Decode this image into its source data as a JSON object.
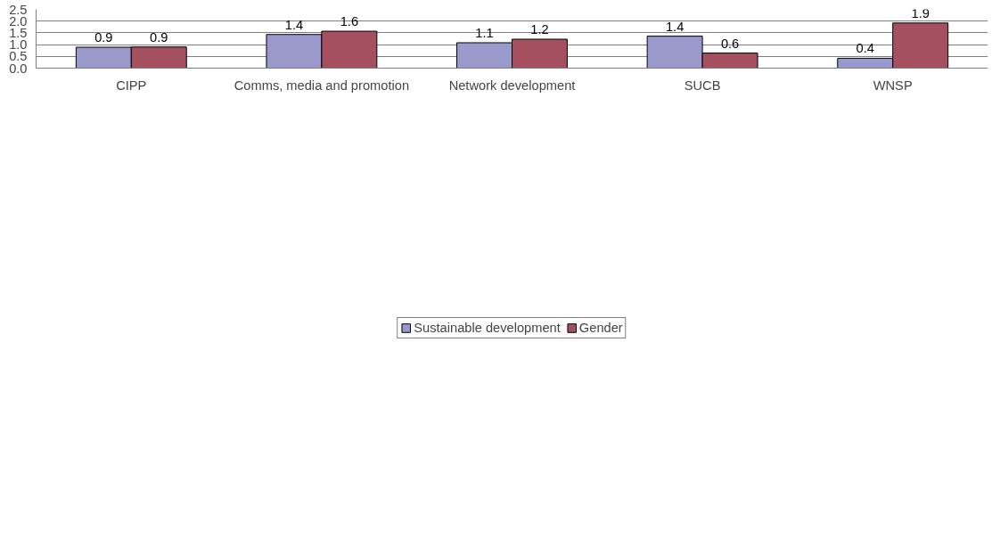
{
  "chart_data": {
    "type": "bar",
    "categories": [
      "CIPP",
      "Comms, media and promotion",
      "Network development",
      "SUCB",
      "WNSP"
    ],
    "series": [
      {
        "name": "Sustainable development",
        "color": "#9999cc",
        "values": [
          0.89,
          1.43,
          1.08,
          1.36,
          0.42
        ],
        "value_labels": [
          "0.9",
          "1.4",
          "1.1",
          "1.4",
          "0.4"
        ]
      },
      {
        "name": "Gender",
        "color": "#a4505e",
        "values": [
          0.9,
          1.57,
          1.23,
          0.64,
          1.92
        ],
        "value_labels": [
          "0.9",
          "1.6",
          "1.2",
          "0.6",
          "1.9"
        ]
      }
    ],
    "ylim": [
      0,
      2.5
    ],
    "yticks": [
      {
        "value": 0,
        "label": "0.0"
      },
      {
        "value": 0.5,
        "label": "0.5"
      },
      {
        "value": 1,
        "label": "1.0"
      },
      {
        "value": 1.5,
        "label": "1.5"
      },
      {
        "value": 2,
        "label": "2.0"
      },
      {
        "value": 2.5,
        "label": "2.5"
      }
    ],
    "grid": "y",
    "legend": "bottom"
  }
}
